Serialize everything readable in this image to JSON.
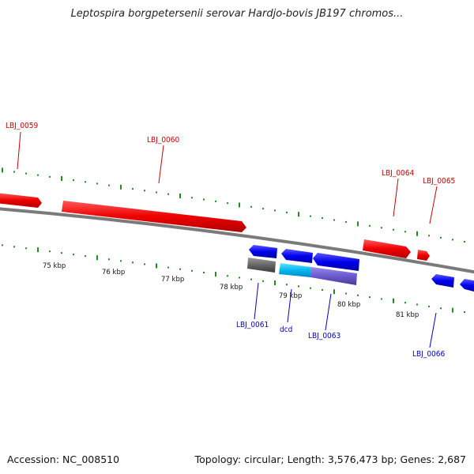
{
  "title": "Leptospira borgpetersenii serovar Hardjo-bovis JB197 chromos...",
  "footer": {
    "accession": "Accession: NC_008510",
    "summary": "Topology: circular; Length: 3,576,473 bp; Genes: 2,687"
  },
  "colors": {
    "forward": "#ee0000",
    "reverse": "#0000ee",
    "forward_label": "#cc0000",
    "reverse_label": "#0000cc",
    "tick": "#228b22",
    "backbone": "#808080"
  },
  "scale_labels": [
    "75 kbp",
    "76 kbp",
    "77 kbp",
    "78 kbp",
    "79 kbp",
    "80 kbp",
    "81 kbp"
  ],
  "genes": [
    {
      "label": "LBJ_0059",
      "strand": "forward"
    },
    {
      "label": "LBJ_0060",
      "strand": "forward"
    },
    {
      "label": "LBJ_0064",
      "strand": "forward"
    },
    {
      "label": "LBJ_0065",
      "strand": "forward"
    },
    {
      "label": "LBJ_0061",
      "strand": "reverse"
    },
    {
      "label": "dcd",
      "strand": "reverse"
    },
    {
      "label": "LBJ_0063",
      "strand": "reverse"
    },
    {
      "label": "LBJ_0066",
      "strand": "reverse"
    }
  ]
}
